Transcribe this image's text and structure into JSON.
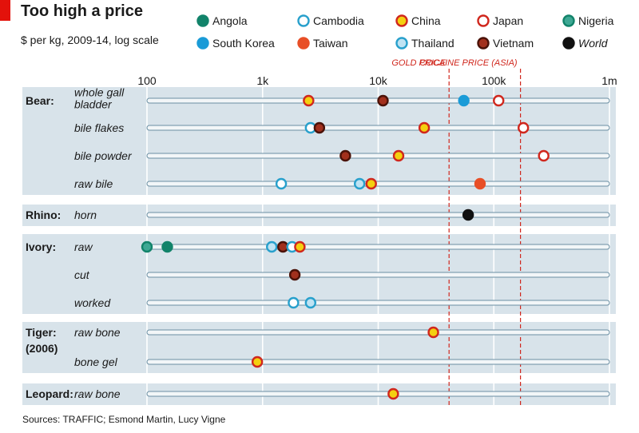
{
  "chart_data": {
    "type": "scatter",
    "title": "Too high a price",
    "subtitle": "$ per kg, 2009-14, log scale",
    "source": "Sources: TRAFFIC; Esmond Martin, Lucy Vigne",
    "x_scale": "log",
    "xlim": [
      100,
      1000000
    ],
    "ticks": [
      {
        "value": 100,
        "label": "100"
      },
      {
        "value": 1000,
        "label": "1k"
      },
      {
        "value": 10000,
        "label": "10k"
      },
      {
        "value": 100000,
        "label": "100k"
      },
      {
        "value": 1000000,
        "label": "1m"
      }
    ],
    "reference_lines": [
      {
        "name": "gold-price-line",
        "label": "GOLD PRICE",
        "value": 41000,
        "color": "#d0271d"
      },
      {
        "name": "cocaine-price-line",
        "label": "COCAINE PRICE (ASIA)",
        "value": 170000,
        "color": "#d0271d"
      }
    ],
    "series": [
      {
        "key": "angola",
        "name": "Angola",
        "fill": "#12836a",
        "stroke": "#12836a",
        "italic": false
      },
      {
        "key": "cambodia",
        "name": "Cambodia",
        "fill": "#ffffff",
        "stroke": "#28a0cc",
        "italic": false
      },
      {
        "key": "china",
        "name": "China",
        "fill": "#f4d010",
        "stroke": "#d0271d",
        "italic": false
      },
      {
        "key": "japan",
        "name": "Japan",
        "fill": "#ffffff",
        "stroke": "#d0271d",
        "italic": false
      },
      {
        "key": "nigeria",
        "name": "Nigeria",
        "fill": "#3ea894",
        "stroke": "#12836a",
        "italic": false
      },
      {
        "key": "south_korea",
        "name": "South Korea",
        "fill": "#1a9bd7",
        "stroke": "#1a9bd7",
        "italic": false
      },
      {
        "key": "taiwan",
        "name": "Taiwan",
        "fill": "#e84f27",
        "stroke": "#e84f27",
        "italic": false
      },
      {
        "key": "thailand",
        "name": "Thailand",
        "fill": "#bfe3f3",
        "stroke": "#28a0cc",
        "italic": false
      },
      {
        "key": "vietnam",
        "name": "Vietnam",
        "fill": "#a2301d",
        "stroke": "#4a1208",
        "italic": false
      },
      {
        "key": "world",
        "name": "World",
        "fill": "#111111",
        "stroke": "#111111",
        "italic": true
      }
    ],
    "groups": [
      {
        "label": "Bear:",
        "rows": [
          {
            "label": "whole gall bladder",
            "label_lines": [
              "whole gall",
              "bladder"
            ],
            "points": [
              {
                "series": "china",
                "value": 2500
              },
              {
                "series": "vietnam",
                "value": 11000
              },
              {
                "series": "south_korea",
                "value": 55000
              },
              {
                "series": "japan",
                "value": 110000
              }
            ]
          },
          {
            "label": "bile flakes",
            "label_lines": [
              "bile flakes"
            ],
            "points": [
              {
                "series": "cambodia",
                "value": 2600
              },
              {
                "series": "vietnam",
                "value": 3100
              },
              {
                "series": "china",
                "value": 25000
              },
              {
                "series": "japan",
                "value": 180000
              }
            ]
          },
          {
            "label": "bile powder",
            "label_lines": [
              "bile powder"
            ],
            "points": [
              {
                "series": "vietnam",
                "value": 5200
              },
              {
                "series": "china",
                "value": 15000
              },
              {
                "series": "japan",
                "value": 270000
              }
            ]
          },
          {
            "label": "raw bile",
            "label_lines": [
              "raw bile"
            ],
            "points": [
              {
                "series": "cambodia",
                "value": 1450
              },
              {
                "series": "thailand",
                "value": 6900
              },
              {
                "series": "china",
                "value": 8700
              },
              {
                "series": "taiwan",
                "value": 76000
              }
            ]
          }
        ]
      },
      {
        "label": "Rhino:",
        "rows": [
          {
            "label": "horn",
            "label_lines": [
              "horn"
            ],
            "points": [
              {
                "series": "world",
                "value": 60000
              }
            ]
          }
        ]
      },
      {
        "label": "Ivory:",
        "rows": [
          {
            "label": "raw",
            "label_lines": [
              "raw"
            ],
            "points": [
              {
                "series": "nigeria",
                "value": 100
              },
              {
                "series": "angola",
                "value": 150
              },
              {
                "series": "thailand",
                "value": 1200
              },
              {
                "series": "vietnam",
                "value": 1500
              },
              {
                "series": "cambodia",
                "value": 1800
              },
              {
                "series": "china",
                "value": 2100
              }
            ]
          },
          {
            "label": "cut",
            "label_lines": [
              "cut"
            ],
            "points": [
              {
                "series": "vietnam",
                "value": 1900
              }
            ]
          },
          {
            "label": "worked",
            "label_lines": [
              "worked"
            ],
            "points": [
              {
                "series": "cambodia",
                "value": 1850
              },
              {
                "series": "thailand",
                "value": 2600
              }
            ]
          }
        ]
      },
      {
        "label": "Tiger:",
        "label_note": "(2006)",
        "rows": [
          {
            "label": "raw bone",
            "label_lines": [
              "raw bone"
            ],
            "points": [
              {
                "series": "china",
                "value": 30000
              }
            ]
          },
          {
            "label": "bone gel",
            "label_lines": [
              "bone gel"
            ],
            "points": [
              {
                "series": "china",
                "value": 900
              }
            ]
          }
        ]
      },
      {
        "label": "Leopard:",
        "rows": [
          {
            "label": "raw bone",
            "label_lines": [
              "raw bone"
            ],
            "points": [
              {
                "series": "china",
                "value": 13500
              }
            ]
          }
        ]
      }
    ]
  },
  "colors": {
    "accent_red": "#e3120b",
    "panel_bg": "#d8e3ea",
    "rail_fill": "#f2f6f8",
    "rail_stroke": "#6b8fa3",
    "grid": "#ffffff",
    "text": "#1a1a1a"
  }
}
